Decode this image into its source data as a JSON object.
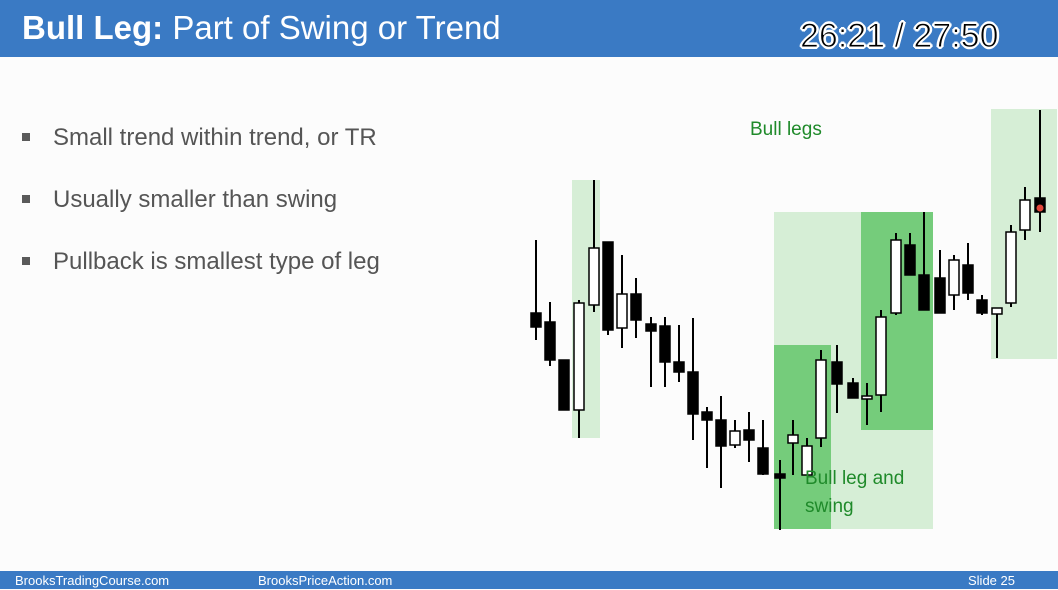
{
  "slide": {
    "title_bold": "Bull Leg:",
    "title_rest": " Part of Swing or Trend",
    "timer": "26:21 / 27:50",
    "bullets": [
      {
        "text": "Small trend within trend, or TR"
      },
      {
        "text": "Usually smaller than swing"
      },
      {
        "text": "Pullback is smallest type of leg"
      }
    ],
    "chart": {
      "label_bull_legs": "Bull legs",
      "label_swing_line1": "Bull leg and",
      "label_swing_line2": "swing",
      "colors": {
        "light_green": "#d6eed6",
        "mid_green": "#c9e9c9",
        "dark_green": "#75cc7b",
        "label_green": "#1f8a2a",
        "bear_candle": "#000000",
        "bull_candle": "#ffffff",
        "marker": "#e2463a"
      }
    },
    "footer": {
      "left": "BrooksTradingCourse.com",
      "center": "BrooksPriceAction.com",
      "right": "Slide  25"
    }
  }
}
